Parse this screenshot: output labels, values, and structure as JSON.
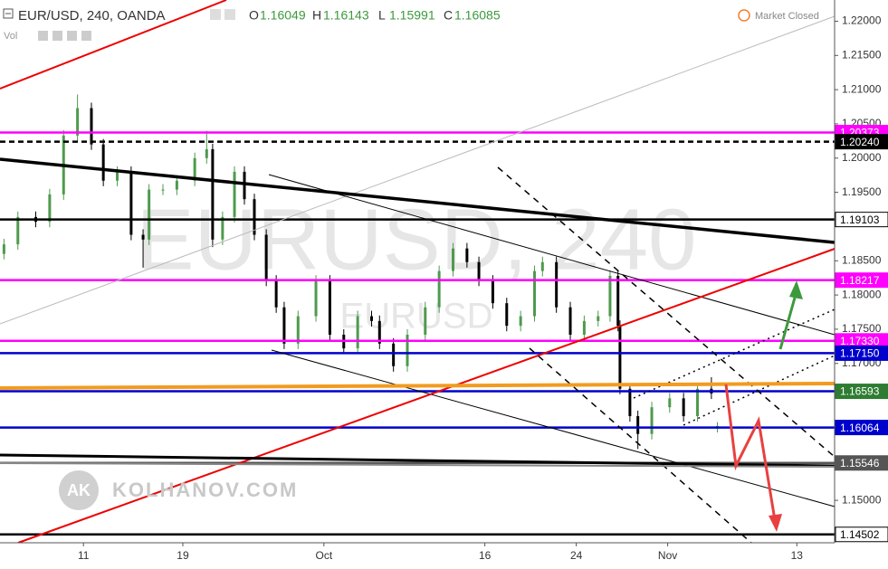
{
  "chart_data": {
    "type": "candlestick",
    "title": "EUR/USD, 240, OANDA",
    "indicator": "Vol",
    "status": "Market Closed",
    "watermark": "EURUSD, 240",
    "watermark_sub": "EURUSD",
    "logo_initials": "AK",
    "logo_text": "KOLHANOV.COM",
    "ohlc_letters": [
      "O",
      "H",
      "L",
      "C"
    ],
    "up_color": "#4e9a4e",
    "down_color": "#000000",
    "x": [
      2,
      9,
      18,
      25,
      32,
      39,
      46,
      52,
      59,
      66,
      72,
      75,
      82,
      89,
      98,
      104,
      107,
      112,
      118,
      123,
      128,
      134,
      139,
      143,
      150,
      159,
      166,
      173,
      180,
      187,
      191,
      198,
      205,
      214,
      221,
      228,
      235,
      241,
      248,
      255,
      262,
      269,
      273,
      280,
      287,
      294,
      301,
      307,
      311,
      312,
      317,
      321,
      328,
      337,
      344,
      351,
      358,
      361
    ],
    "open": [
      1.186,
      1.1874,
      1.1914,
      1.1907,
      1.1947,
      1.2033,
      1.2073,
      1.202,
      1.1967,
      1.198,
      1.1888,
      1.1881,
      1.1954,
      1.1954,
      1.1967,
      1.2,
      1.2013,
      1.1881,
      1.1914,
      1.198,
      1.194,
      1.1888,
      1.1821,
      1.1782,
      1.1729,
      1.1769,
      1.1821,
      1.1742,
      1.1722,
      1.1769,
      1.1762,
      1.1729,
      1.1696,
      1.1742,
      1.1782,
      1.1835,
      1.1868,
      1.1848,
      1.1821,
      1.1788,
      1.1755,
      1.1769,
      1.1835,
      1.1848,
      1.1782,
      1.1742,
      1.1762,
      1.1769,
      1.1828,
      1.1755,
      1.1663,
      1.1623,
      1.1597,
      1.1636,
      1.1649,
      1.1623,
      1.1663,
      1.16049
    ],
    "high": [
      1.1882,
      1.1922,
      1.1922,
      1.1955,
      1.2041,
      1.2093,
      1.2081,
      1.2028,
      1.1988,
      1.1988,
      1.1896,
      1.1962,
      1.1962,
      1.1975,
      1.2008,
      1.204,
      1.2021,
      1.1922,
      1.1988,
      1.1988,
      1.1948,
      1.1896,
      1.1829,
      1.179,
      1.1777,
      1.1829,
      1.1829,
      1.175,
      1.1777,
      1.1777,
      1.177,
      1.1737,
      1.175,
      1.179,
      1.1843,
      1.1876,
      1.1876,
      1.1856,
      1.1829,
      1.1796,
      1.1777,
      1.1843,
      1.1856,
      1.1856,
      1.179,
      1.177,
      1.1777,
      1.1836,
      1.1836,
      1.1763,
      1.1671,
      1.1631,
      1.1644,
      1.1657,
      1.1657,
      1.1671,
      1.168,
      1.16143
    ],
    "low": [
      1.1852,
      1.1866,
      1.1899,
      1.1899,
      1.1939,
      1.2025,
      1.2012,
      1.1959,
      1.1959,
      1.188,
      1.184,
      1.1873,
      1.1946,
      1.1946,
      1.1959,
      1.1992,
      1.187,
      1.1873,
      1.1906,
      1.1932,
      1.188,
      1.1813,
      1.1774,
      1.1721,
      1.1721,
      1.1761,
      1.1734,
      1.1714,
      1.1714,
      1.1754,
      1.1721,
      1.1688,
      1.1688,
      1.1734,
      1.1774,
      1.1827,
      1.184,
      1.1813,
      1.178,
      1.1747,
      1.1747,
      1.1761,
      1.1827,
      1.1774,
      1.1734,
      1.1734,
      1.1754,
      1.1761,
      1.1747,
      1.1655,
      1.1615,
      1.1575,
      1.1589,
      1.1628,
      1.1615,
      1.1615,
      1.1648,
      1.15991
    ],
    "close": [
      1.1874,
      1.1914,
      1.1907,
      1.1947,
      1.2033,
      1.2073,
      1.202,
      1.1967,
      1.198,
      1.1888,
      1.1881,
      1.1954,
      1.1954,
      1.1967,
      1.2,
      1.2013,
      1.1881,
      1.1914,
      1.198,
      1.194,
      1.1888,
      1.1821,
      1.1782,
      1.1729,
      1.1769,
      1.1821,
      1.1742,
      1.1722,
      1.1769,
      1.1762,
      1.1729,
      1.1696,
      1.1742,
      1.1782,
      1.1835,
      1.1868,
      1.1848,
      1.1821,
      1.1788,
      1.1755,
      1.1769,
      1.1835,
      1.1848,
      1.1782,
      1.1742,
      1.1762,
      1.1769,
      1.1828,
      1.1755,
      1.1663,
      1.1623,
      1.1597,
      1.1636,
      1.1649,
      1.1623,
      1.1663,
      1.1656,
      1.16085
    ],
    "xlim": [
      0,
      420
    ],
    "ylim": [
      1.1438,
      1.2231
    ],
    "xticks": [
      {
        "value": 42,
        "label": "11"
      },
      {
        "value": 92,
        "label": "19"
      },
      {
        "value": 163,
        "label": "Oct"
      },
      {
        "value": 244,
        "label": "16"
      },
      {
        "value": 290,
        "label": "24"
      },
      {
        "value": 336,
        "label": "Nov"
      },
      {
        "value": 401,
        "label": "13"
      }
    ],
    "yticks": [
      {
        "value": 1.22,
        "label": "1.22000"
      },
      {
        "value": 1.215,
        "label": "1.21500"
      },
      {
        "value": 1.21,
        "label": "1.21000"
      },
      {
        "value": 1.205,
        "label": "1.20500"
      },
      {
        "value": 1.2,
        "label": "1.20000"
      },
      {
        "value": 1.195,
        "label": "1.19500"
      },
      {
        "value": 1.185,
        "label": "1.18500"
      },
      {
        "value": 1.18,
        "label": "1.18000"
      },
      {
        "value": 1.175,
        "label": "1.17500"
      },
      {
        "value": 1.17,
        "label": "1.17000"
      },
      {
        "value": 1.15,
        "label": "1.15000"
      }
    ],
    "levels": [
      {
        "value": 1.20373,
        "color": "#ff00ff"
      },
      {
        "value": 1.2024,
        "label": "1.20240",
        "color": "#000000",
        "dashed": true
      },
      {
        "value": 1.19103,
        "color": "#000000"
      },
      {
        "value": 1.18217,
        "color": "#ff00ff"
      },
      {
        "value": 1.1733,
        "label": "1.17330",
        "color": "#ff00ff"
      },
      {
        "value": 1.1715,
        "label": "1.17150",
        "color": "#0000cc"
      },
      {
        "value": 1.16593,
        "color": "#0000cc",
        "label_color": "#2e7d32"
      },
      {
        "value": 1.16064,
        "color": "#0000cc"
      },
      {
        "value": 1.15546,
        "color": "#555555"
      },
      {
        "value": 1.14502,
        "color": "#000000"
      }
    ]
  }
}
